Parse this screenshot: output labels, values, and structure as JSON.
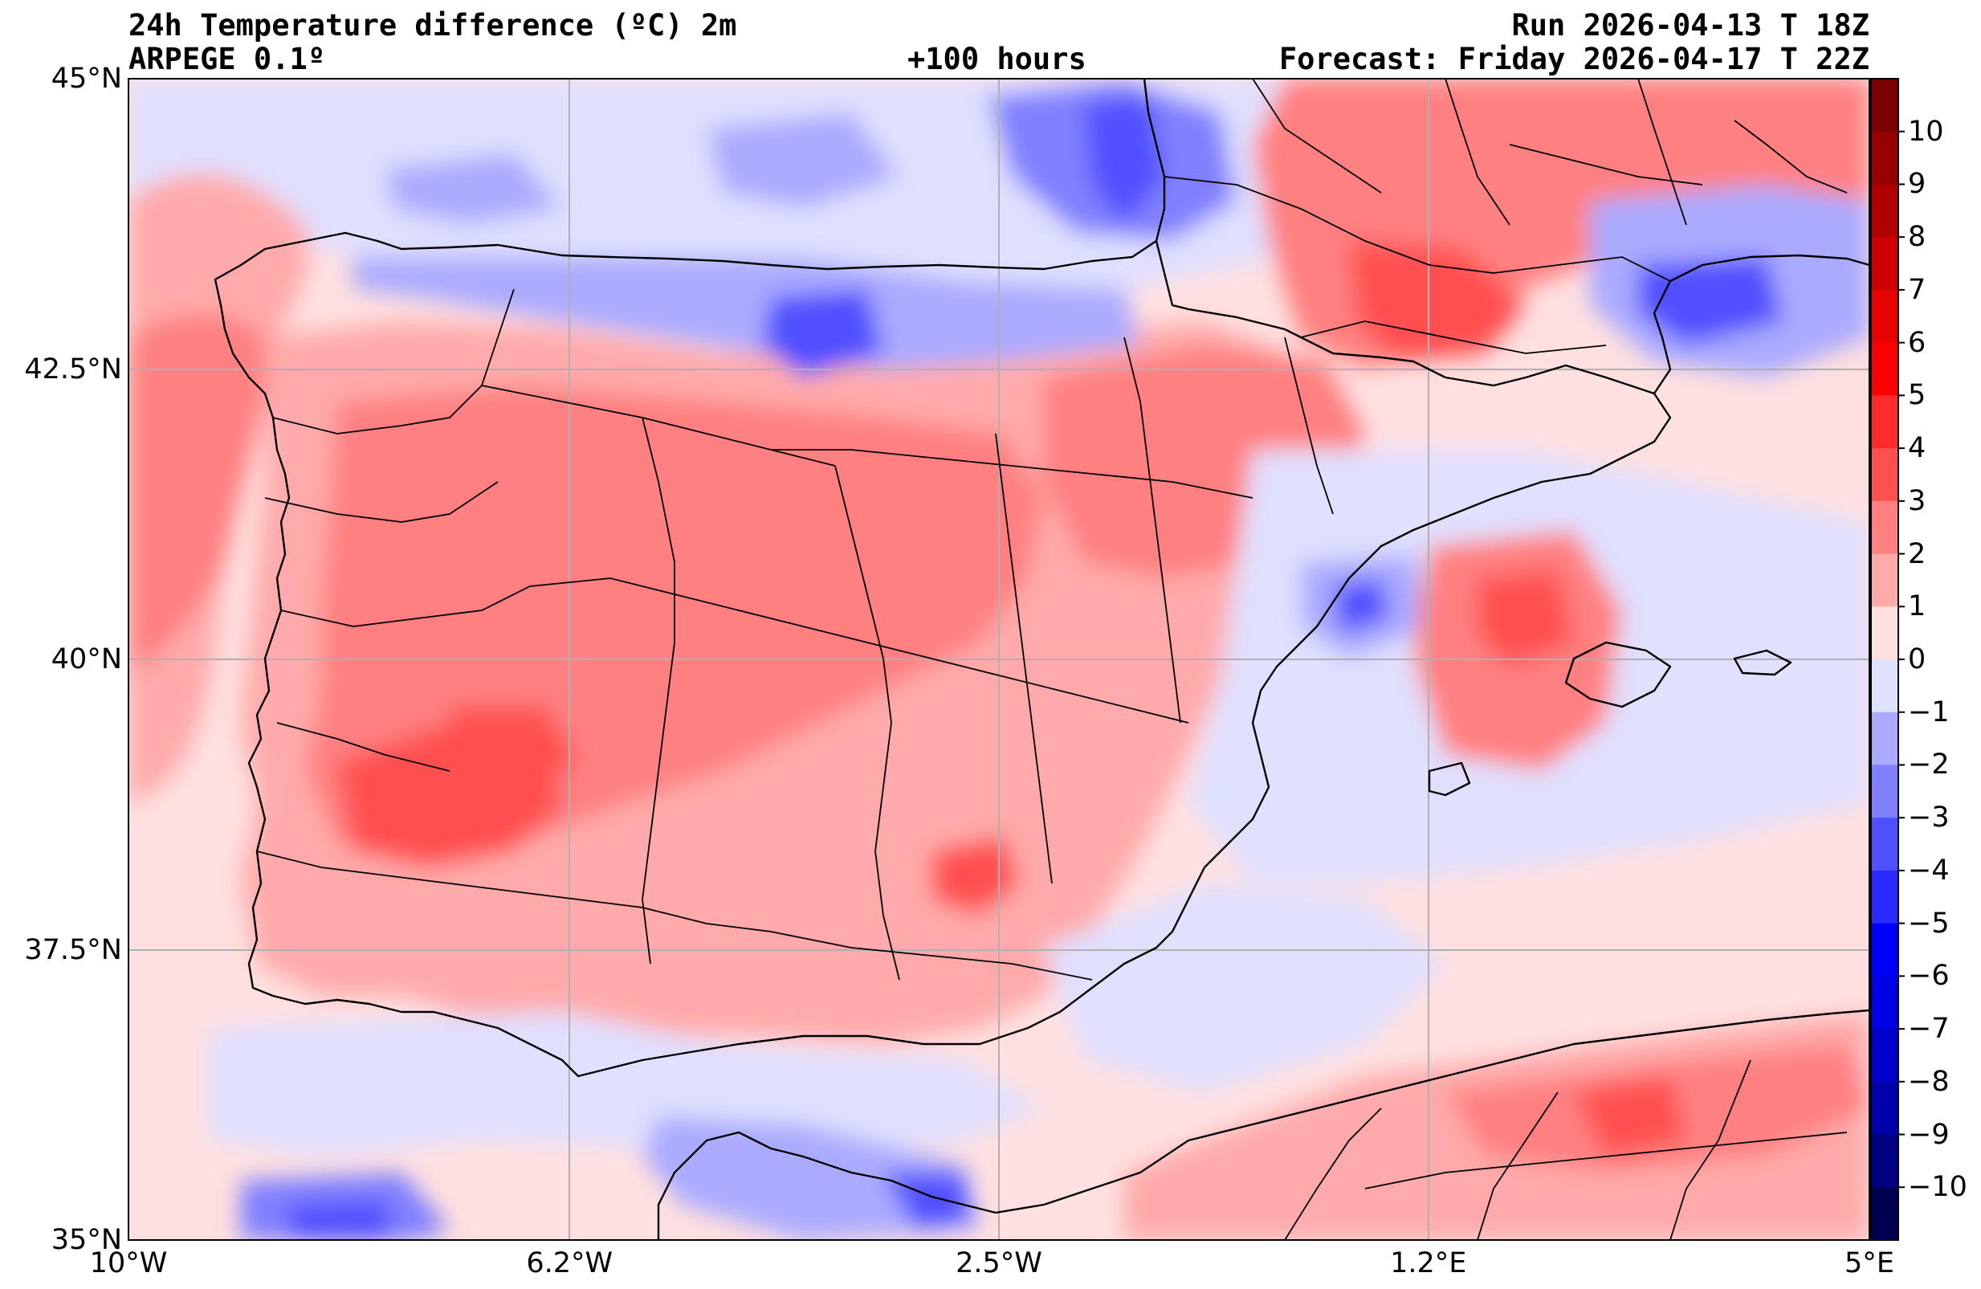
{
  "header": {
    "title_line1": "24h Temperature difference (ºC) 2m",
    "title_line2": "ARPEGE 0.1º",
    "lead_time": "+100 hours",
    "run": "Run 2026-04-13 T 18Z",
    "forecast": "Forecast: Friday 2026-04-17 T 22Z"
  },
  "map": {
    "lon_range": [
      -10,
      5
    ],
    "lat_range": [
      35,
      45
    ],
    "lat_ticks": [
      {
        "value": 45,
        "label": "45°N"
      },
      {
        "value": 42.5,
        "label": "42.5°N"
      },
      {
        "value": 40,
        "label": "40°N"
      },
      {
        "value": 37.5,
        "label": "37.5°N"
      },
      {
        "value": 35,
        "label": "35°N"
      }
    ],
    "lon_ticks": [
      {
        "value": -10,
        "label": "10°W"
      },
      {
        "value": -6.2,
        "label": "6.2°W"
      },
      {
        "value": -2.5,
        "label": "2.5°W"
      },
      {
        "value": 1.2,
        "label": "1.2°E"
      },
      {
        "value": 5,
        "label": "5°E"
      }
    ],
    "gridlines": true
  },
  "colorbar": {
    "labels": [
      "10",
      "9",
      "8",
      "7",
      "6",
      "5",
      "4",
      "3",
      "2",
      "1",
      "0",
      "−1",
      "−2",
      "−3",
      "−4",
      "−5",
      "−6",
      "−7",
      "−8",
      "−9",
      "−10"
    ],
    "colors": [
      "#7b0000",
      "#960000",
      "#b00000",
      "#cc0000",
      "#e60000",
      "#ff0000",
      "#ff2a2a",
      "#ff5050",
      "#ff8080",
      "#ffaaaa",
      "#ffe0e0",
      "#e0e0ff",
      "#aaaaff",
      "#8080ff",
      "#5050ff",
      "#2a2aff",
      "#0000ff",
      "#0000e6",
      "#0000cc",
      "#0000aa",
      "#000080",
      "#000050"
    ]
  },
  "icons": {
    "coastline": "coastline-icon",
    "province_borders": "borders-icon"
  }
}
